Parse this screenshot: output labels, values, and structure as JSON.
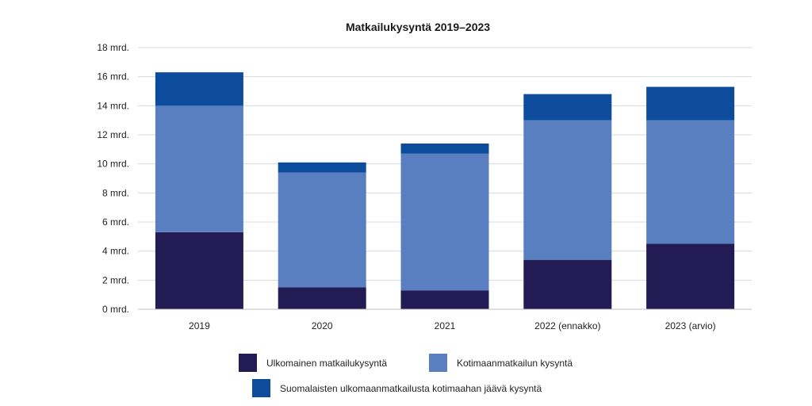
{
  "chart_data": {
    "type": "bar",
    "stacked": true,
    "title": "Matkailukysyntä 2019–2023",
    "categories": [
      "2019",
      "2020",
      "2021",
      "2022 (ennakko)",
      "2023 (arvio)"
    ],
    "y_tick_labels": [
      "0 mrd.",
      "2 mrd.",
      "4 mrd.",
      "6 mrd.",
      "8 mrd.",
      "10 mrd.",
      "12 mrd.",
      "14 mrd.",
      "16 mrd.",
      "18 mrd."
    ],
    "ylim": [
      0,
      18
    ],
    "grid": true,
    "legend_position": "bottom",
    "series": [
      {
        "name": "Ulkomainen matkailukysyntä",
        "color": "#231c54",
        "values": [
          5.3,
          1.5,
          1.3,
          3.4,
          4.5
        ]
      },
      {
        "name": "Kotimaanmatkailun kysyntä",
        "color": "#5a7fc0",
        "values": [
          8.7,
          7.9,
          9.4,
          9.6,
          8.5
        ]
      },
      {
        "name": "Suomalaisten ulkomaanmatkailusta kotimaahan jäävä kysyntä",
        "color": "#0d4c9c",
        "values": [
          2.3,
          0.7,
          0.7,
          1.8,
          2.3
        ]
      }
    ]
  }
}
